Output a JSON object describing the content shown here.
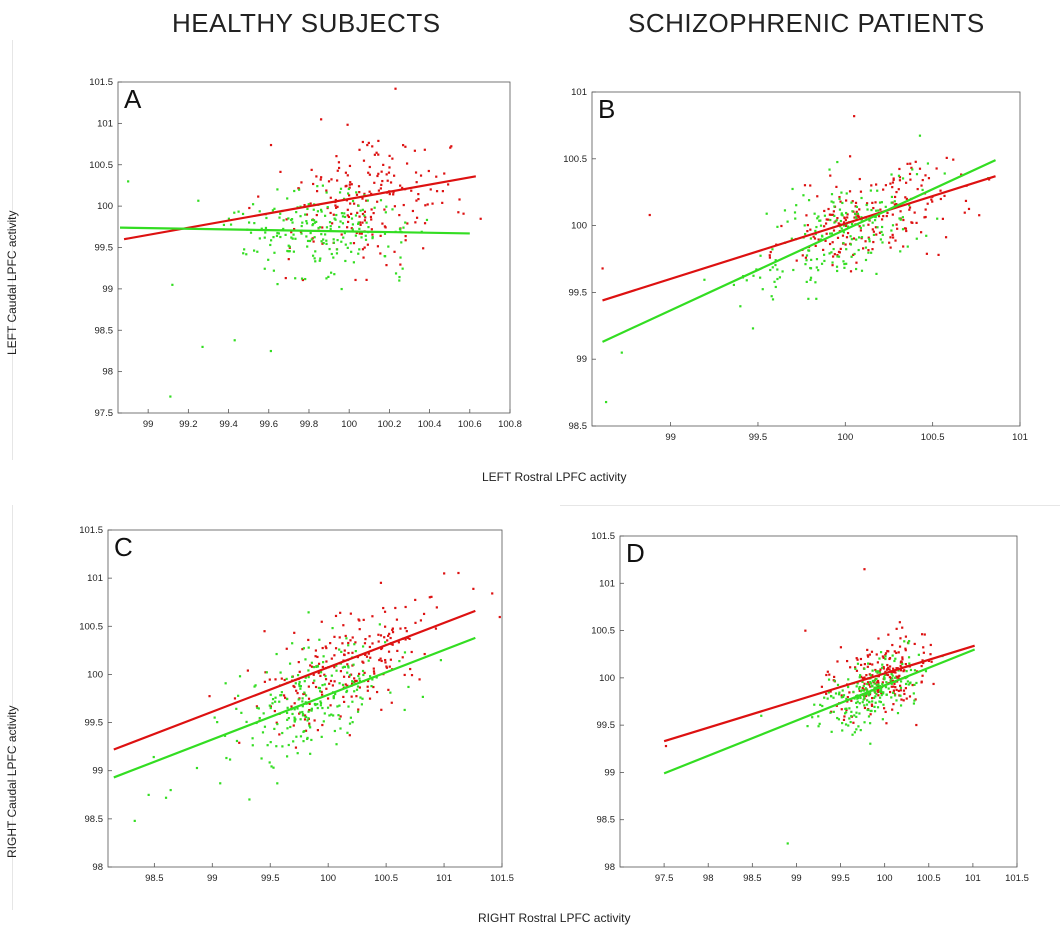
{
  "headings": {
    "left": "HEALTHY SUBJECTS",
    "right": "SCHIZOPHRENIC PATIENTS"
  },
  "axis_titles": {
    "top_y": "LEFT Caudal LPFC activity",
    "top_x": "LEFT Rostral LPFC activity",
    "bottom_y": "RIGHT Caudal LPFC activity",
    "bottom_x": "RIGHT Rostral LPFC activity"
  },
  "colors": {
    "red": "#dd1111",
    "green": "#33dd22"
  },
  "chart_data": [
    {
      "panel": "A",
      "type": "scatter",
      "xlim": [
        98.85,
        100.8
      ],
      "ylim": [
        97.5,
        101.5
      ],
      "xticks": [
        "99",
        "99.2",
        "99.4",
        "99.6",
        "99.8",
        "100",
        "100.2",
        "100.4",
        "100.6",
        "100.8"
      ],
      "yticks": [
        "97.5",
        "98",
        "98.5",
        "99",
        "99.5",
        "100",
        "100.5",
        "101",
        "101.5"
      ],
      "series": [
        {
          "color": "red",
          "n": 200,
          "xmean": 100.1,
          "xsd": 0.2,
          "ymean": 100.0,
          "ysd": 0.42,
          "fit": [
            [
              98.88,
              99.6
            ],
            [
              100.63,
              100.36
            ]
          ],
          "extra": [
            [
              99.86,
              100.35
            ],
            [
              100.23,
              101.42
            ],
            [
              99.86,
              101.05
            ]
          ]
        },
        {
          "color": "green",
          "n": 210,
          "xmean": 99.85,
          "xsd": 0.22,
          "ymean": 99.7,
          "ysd": 0.32,
          "fit": [
            [
              98.86,
              99.74
            ],
            [
              100.6,
              99.67
            ]
          ],
          "extra": [
            [
              99.11,
              97.7
            ],
            [
              99.27,
              98.3
            ],
            [
              99.61,
              98.25
            ],
            [
              99.43,
              98.38
            ],
            [
              99.12,
              99.05
            ],
            [
              98.9,
              100.3
            ]
          ]
        }
      ]
    },
    {
      "panel": "B",
      "type": "scatter",
      "xlim": [
        98.55,
        101
      ],
      "ylim": [
        98.5,
        101
      ],
      "xticks": [
        "99",
        "99.5",
        "100",
        "100.5",
        "101"
      ],
      "yticks": [
        "98.5",
        "99",
        "99.5",
        "100",
        "100.5",
        "101"
      ],
      "series": [
        {
          "color": "red",
          "n": 200,
          "xmean": 100.15,
          "xsd": 0.25,
          "ymean": 100.05,
          "ysd": 0.2,
          "fit": [
            [
              98.61,
              99.44
            ],
            [
              100.86,
              100.37
            ]
          ],
          "extra": [
            [
              98.88,
              100.08
            ],
            [
              100.05,
              100.82
            ],
            [
              98.61,
              99.68
            ]
          ]
        },
        {
          "color": "green",
          "n": 200,
          "xmean": 99.95,
          "xsd": 0.25,
          "ymean": 99.95,
          "ysd": 0.22,
          "fit": [
            [
              98.61,
              99.13
            ],
            [
              100.86,
              100.49
            ]
          ],
          "extra": [
            [
              98.63,
              98.68
            ],
            [
              98.72,
              99.05
            ]
          ]
        }
      ]
    },
    {
      "panel": "C",
      "type": "scatter",
      "xlim": [
        98.1,
        101.5
      ],
      "ylim": [
        98,
        101.5
      ],
      "xticks": [
        "98.5",
        "99",
        "99.5",
        "100",
        "100.5",
        "101",
        "101.5"
      ],
      "yticks": [
        "98",
        "98.5",
        "99",
        "99.5",
        "100",
        "100.5",
        "101",
        "101.5"
      ],
      "series": [
        {
          "color": "red",
          "n": 230,
          "xmean": 100.2,
          "xsd": 0.4,
          "ymean": 100.15,
          "ysd": 0.35,
          "fit": [
            [
              98.15,
              99.22
            ],
            [
              101.27,
              100.66
            ]
          ],
          "extra": [
            [
              101.0,
              101.05
            ],
            [
              99.45,
              100.45
            ]
          ]
        },
        {
          "color": "green",
          "n": 230,
          "xmean": 99.85,
          "xsd": 0.38,
          "ymean": 99.75,
          "ysd": 0.33,
          "fit": [
            [
              98.15,
              98.93
            ],
            [
              101.27,
              100.38
            ]
          ],
          "extra": [
            [
              98.33,
              98.48
            ],
            [
              98.6,
              98.72
            ],
            [
              98.64,
              98.8
            ],
            [
              99.56,
              98.87
            ],
            [
              98.45,
              98.75
            ]
          ]
        }
      ]
    },
    {
      "panel": "D",
      "type": "scatter",
      "xlim": [
        97,
        101.5
      ],
      "ylim": [
        98,
        101.5
      ],
      "xticks": [
        "97.5",
        "98",
        "98.5",
        "99",
        "99.5",
        "100",
        "100.5",
        "101",
        "101.5"
      ],
      "yticks": [
        "98",
        "98.5",
        "99",
        "99.5",
        "100",
        "100.5",
        "101",
        "101.5"
      ],
      "series": [
        {
          "color": "red",
          "n": 220,
          "xmean": 99.97,
          "xsd": 0.26,
          "ymean": 99.98,
          "ysd": 0.23,
          "fit": [
            [
              97.5,
              99.33
            ],
            [
              101.02,
              100.34
            ]
          ],
          "extra": [
            [
              99.77,
              101.15
            ],
            [
              97.52,
              99.28
            ],
            [
              99.1,
              100.5
            ]
          ]
        },
        {
          "color": "green",
          "n": 220,
          "xmean": 99.85,
          "xsd": 0.24,
          "ymean": 99.82,
          "ysd": 0.2,
          "fit": [
            [
              97.5,
              98.99
            ],
            [
              101.02,
              100.3
            ]
          ],
          "extra": [
            [
              98.9,
              98.25
            ],
            [
              98.6,
              99.6
            ]
          ]
        }
      ]
    }
  ]
}
